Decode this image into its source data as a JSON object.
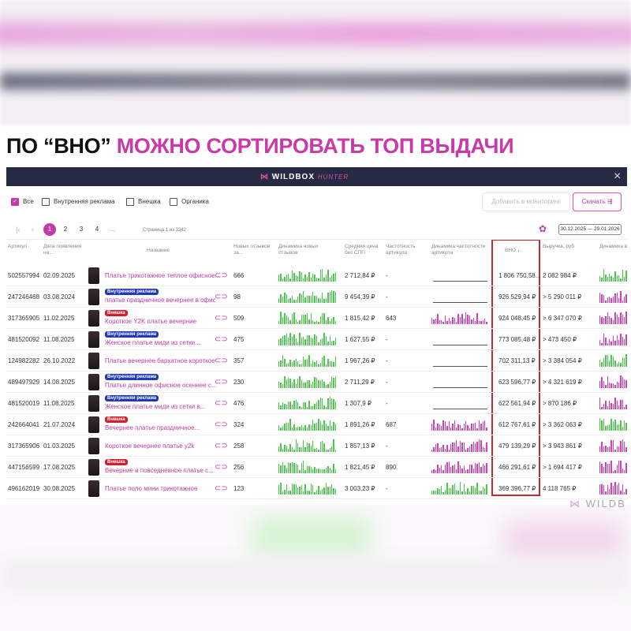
{
  "heading": {
    "prefix": "ПО “ВНО”",
    "highlight": "МОЖНО СОРТИРОВАТЬ ТОП ВЫДАЧИ"
  },
  "app": {
    "logo": "WILDBOX",
    "logo_suffix": "HUNTER"
  },
  "filters": [
    {
      "label": "Все",
      "checked": true
    },
    {
      "label": "Внутренняя реклама",
      "checked": false
    },
    {
      "label": "Внешка",
      "checked": false
    },
    {
      "label": "Органика",
      "checked": false
    }
  ],
  "buttons": {
    "monitor": "Добавить в мониторинг",
    "download": "Скачать"
  },
  "pagination": {
    "pages": [
      1,
      2,
      3,
      4
    ],
    "ellipsis": "...",
    "info": "Страница 1 из 3242"
  },
  "date_range": "30.12.2025 — 29.01.2026",
  "table": {
    "columns": [
      "Артикул",
      "Дата появления на...",
      "Название",
      "Новых отзывов за...",
      "Динамика новых отзывов",
      "Средняя цена без СПП",
      "Частотность артикула",
      "Динамика частотности артикула",
      "ВНО",
      "Выручка, руб",
      "Динамика в"
    ],
    "rows": [
      {
        "article": "502557994",
        "date": "02.09.2025",
        "name": "Платье трикотажное теплое офисное...",
        "reviews": 666,
        "price": "2 712,84 ₽",
        "frequency": "-",
        "vno": "1 806 750,58...",
        "revenue": "2 082 984 ₽",
        "dynamics_color": "#4cc94c",
        "frequency_color": "flat",
        "revenue_dynamics_color": "#4cc94c"
      },
      {
        "article": "247246468",
        "date": "03.08.2024",
        "badge": {
          "text": "Внутренняя реклама",
          "color": "#2139b5"
        },
        "name": "платье праздничное вечернее в офис",
        "reviews": 98,
        "price": "9 454,39 ₽",
        "frequency": "-",
        "vno": "926 529,94 ₽",
        "revenue": "> 5 290 011 ₽",
        "dynamics_color": "#4cc94c",
        "frequency_color": "flat",
        "revenue_dynamics_color": "#d63fb5"
      },
      {
        "article": "317365905",
        "date": "11.02.2025",
        "badge": {
          "text": "Внешка",
          "color": "#d1202c"
        },
        "name": "Короткое Y2K платье вечерние",
        "reviews": 509,
        "price": "1 815,42 ₽",
        "frequency": "643",
        "vno": "924 048,45 ₽",
        "revenue": "> 6 347 070 ₽",
        "dynamics_color": "#4cc94c",
        "frequency_color": "#d63fb5",
        "revenue_dynamics_color": "#d63fb5"
      },
      {
        "article": "481520092",
        "date": "11.08.2025",
        "badge": {
          "text": "Внутренняя реклама",
          "color": "#2139b5"
        },
        "name": "Женское платье миди из сетки...",
        "reviews": 475,
        "price": "1 627,55 ₽",
        "frequency": "-",
        "vno": "773 085,48 ₽",
        "revenue": "> 473 450 ₽",
        "dynamics_color": "#4cc94c",
        "frequency_color": "flat",
        "revenue_dynamics_color": "#d63fb5"
      },
      {
        "article": "124982282",
        "date": "26.10.2022",
        "name": "Платье вечернее бархатное короткое",
        "reviews": 357,
        "price": "1 967,26 ₽",
        "frequency": "-",
        "vno": "702 311,13 ₽",
        "revenue": "> 3 384 054 ₽",
        "dynamics_color": "#4cc94c",
        "frequency_color": "flat",
        "revenue_dynamics_color": "#4cc94c"
      },
      {
        "article": "489497929",
        "date": "14.08.2025",
        "badge": {
          "text": "Внутренняя реклама",
          "color": "#2139b5"
        },
        "name": "Платье длинное офисное осеннее с...",
        "reviews": 230,
        "price": "2 711,29 ₽",
        "frequency": "-",
        "vno": "623 596,77 ₽",
        "revenue": "> 4 321 619 ₽",
        "dynamics_color": "#4cc94c",
        "frequency_color": "flat",
        "revenue_dynamics_color": "#d63fb5"
      },
      {
        "article": "481520019",
        "date": "11.08.2025",
        "badge": {
          "text": "Внутренняя реклама",
          "color": "#2139b5"
        },
        "name": "Женское платье миди из сетки в...",
        "reviews": 476,
        "price": "1 307,9 ₽",
        "frequency": "-",
        "vno": "622 561,94 ₽",
        "revenue": "> 870 186 ₽",
        "dynamics_color": "#4cc94c",
        "frequency_color": "flat",
        "revenue_dynamics_color": "#d63fb5"
      },
      {
        "article": "242664041",
        "date": "21.07.2024",
        "badge": {
          "text": "Внешка",
          "color": "#d1202c"
        },
        "name": "Вечернее платье праздничное...",
        "reviews": 324,
        "price": "1 891,26 ₽",
        "frequency": "687",
        "vno": "612 767,61 ₽",
        "revenue": "> 3 362 063 ₽",
        "dynamics_color": "#4cc94c",
        "frequency_color": "#d63fb5",
        "revenue_dynamics_color": "#4cc94c"
      },
      {
        "article": "317365906",
        "date": "01.03.2025",
        "name": "Короткое вечернее платье y2k",
        "reviews": 258,
        "price": "1 857,13 ₽",
        "frequency": "-",
        "vno": "479 139,29 ₽",
        "revenue": "> 3 943 861 ₽",
        "dynamics_color": "#4cc94c",
        "frequency_color": "#d63fb5",
        "revenue_dynamics_color": "#d63fb5"
      },
      {
        "article": "447156599",
        "date": "17.08.2025",
        "badge": {
          "text": "Внешка",
          "color": "#d1202c"
        },
        "name": "Вечерние и повседневное платье с...",
        "reviews": 256,
        "price": "1 821,45 ₽",
        "frequency": "890",
        "vno": "466 291,61 ₽",
        "revenue": "> 1 694 417 ₽",
        "dynamics_color": "#4cc94c",
        "frequency_color": "#d63fb5",
        "revenue_dynamics_color": "#d63fb5"
      },
      {
        "article": "496162019",
        "date": "30.08.2025",
        "name": "Платье поло мини трикотажное",
        "reviews": 123,
        "price": "3 003,23 ₽",
        "frequency": "-",
        "vno": "369 396,77 ₽",
        "revenue": "4 118 765 ₽",
        "dynamics_color": "#4cc94c",
        "frequency_color": "#4cc94c",
        "revenue_dynamics_color": "#d63fb5"
      }
    ]
  },
  "watermark": "WILDB"
}
